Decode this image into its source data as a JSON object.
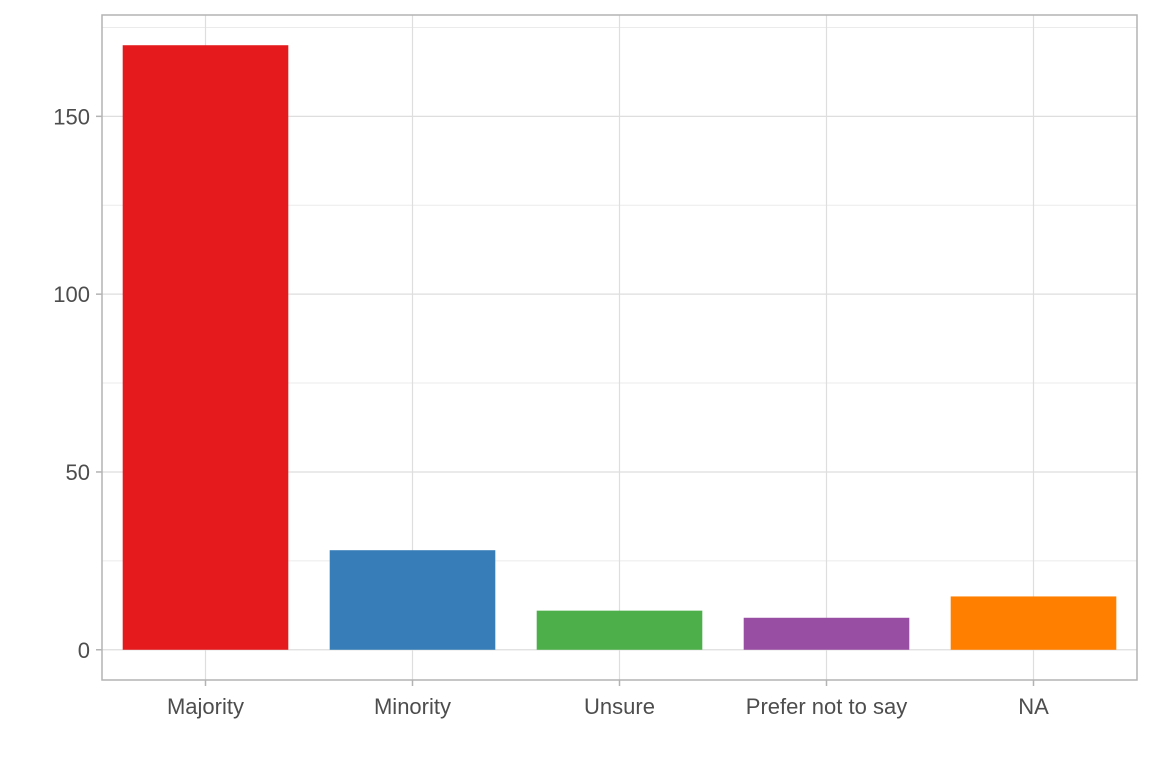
{
  "chart_data": {
    "type": "bar",
    "categories": [
      "Majority",
      "Minority",
      "Unsure",
      "Prefer not to say",
      "NA"
    ],
    "values": [
      170,
      28,
      11,
      9,
      15
    ],
    "colors": [
      "#E41A1C",
      "#377EB8",
      "#4DAF4A",
      "#984EA3",
      "#FF7F00"
    ],
    "y_ticks": [
      0,
      50,
      100,
      150
    ],
    "y_tick_labels": [
      "0",
      "50",
      "100",
      "150"
    ],
    "ylim": [
      -8.5,
      178.5
    ],
    "title": "",
    "xlabel": "",
    "ylabel": "",
    "grid": true,
    "legend": "none"
  }
}
